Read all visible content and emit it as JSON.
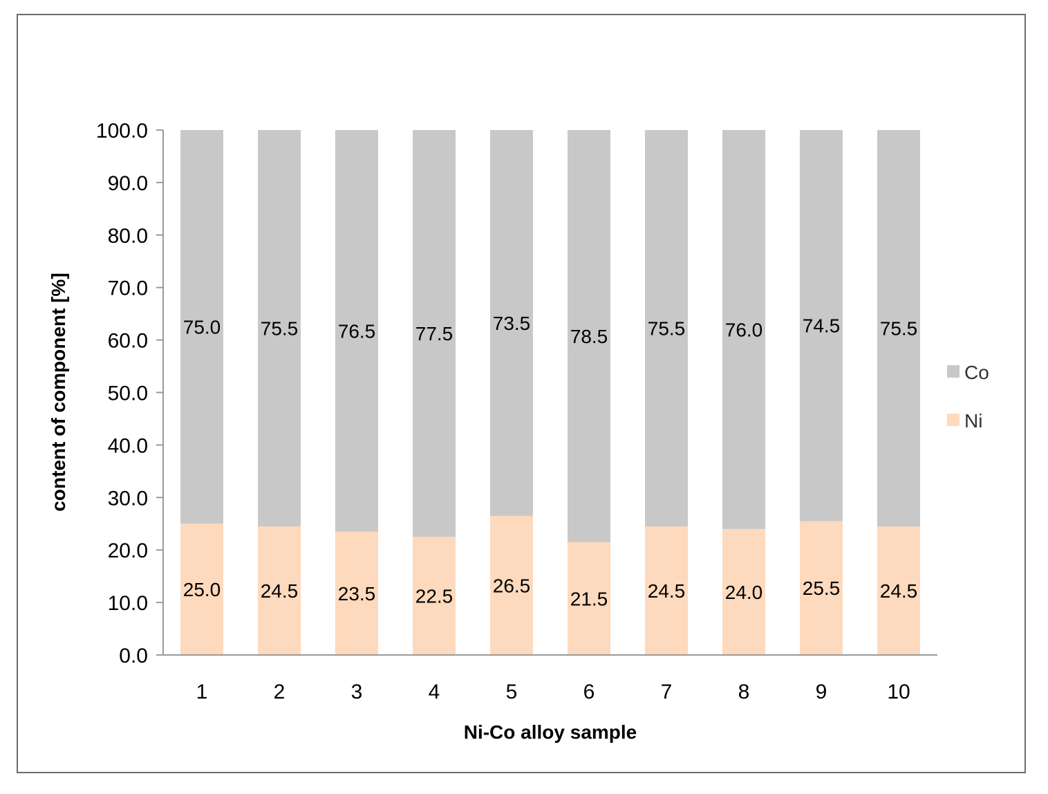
{
  "chart_data": {
    "type": "bar",
    "stacked": true,
    "title": "",
    "xlabel": "Ni-Co alloy sample",
    "ylabel": "content of component [%]",
    "ylim": [
      0,
      100
    ],
    "yticks": [
      "0.0",
      "10.0",
      "20.0",
      "30.0",
      "40.0",
      "50.0",
      "60.0",
      "70.0",
      "80.0",
      "90.0",
      "100.0"
    ],
    "categories": [
      "1",
      "2",
      "3",
      "4",
      "5",
      "6",
      "7",
      "8",
      "9",
      "10"
    ],
    "series": [
      {
        "name": "Ni",
        "color": "#fdd9bd",
        "values": [
          25.0,
          24.5,
          23.5,
          22.5,
          26.5,
          21.5,
          24.5,
          24.0,
          25.5,
          24.5
        ],
        "labels": [
          "25.0",
          "24.5",
          "23.5",
          "22.5",
          "26.5",
          "21.5",
          "24.5",
          "24.0",
          "25.5",
          "24.5"
        ]
      },
      {
        "name": "Co",
        "color": "#c8c8c8",
        "values": [
          75.0,
          75.5,
          76.5,
          77.5,
          73.5,
          78.5,
          75.5,
          76.0,
          74.5,
          75.5
        ],
        "labels": [
          "75.0",
          "75.5",
          "76.5",
          "77.5",
          "73.5",
          "78.5",
          "75.5",
          "76.0",
          "74.5",
          "75.5"
        ]
      }
    ],
    "legend": {
      "placement": "right",
      "order": [
        "Co",
        "Ni"
      ]
    },
    "grid": false
  }
}
